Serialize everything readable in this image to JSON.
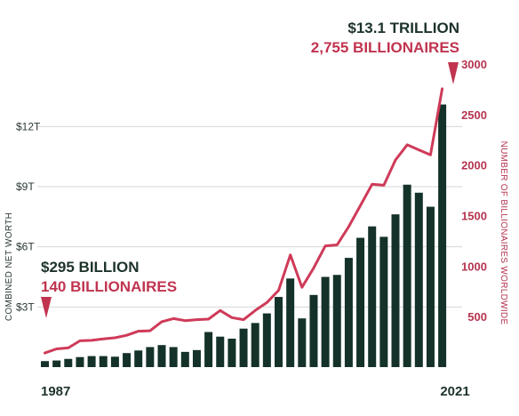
{
  "colors": {
    "bars": "#15322a",
    "line": "#cf3a58",
    "accent": "#c0344f",
    "grid": "#d6d6d6",
    "text": "#1d332a"
  },
  "annotations": {
    "end_worth": "$13.1 TRILLION",
    "end_count": "2,755 BILLIONAIRES",
    "start_worth": "$295 BILLION",
    "start_count": "140 BILLIONAIRES"
  },
  "chart_data": {
    "type": "bar",
    "xlabel": "",
    "x_tick_labels": [
      "1987",
      "2021"
    ],
    "ylabel": "COMBINED NET WORTH",
    "y2label": "NUMBER OF BILLIONAIRES WORLDWIDE",
    "ylim": [
      0,
      15.12
    ],
    "y_ticks": [
      3,
      6,
      9,
      12
    ],
    "y_tick_labels": [
      "$3T",
      "$6T",
      "$9T",
      "$12T"
    ],
    "y2lim": [
      0,
      3000
    ],
    "y2_ticks": [
      500,
      1000,
      1500,
      2000,
      2500,
      3000
    ],
    "y2_tick_labels": [
      "500",
      "1000",
      "1500",
      "2000",
      "2500",
      "3000"
    ],
    "grid": true,
    "categories": [
      "1987",
      "1988",
      "1989",
      "1990",
      "1991",
      "1992",
      "1993",
      "1994",
      "1995",
      "1996",
      "1997",
      "1998",
      "1999",
      "2000",
      "2001",
      "2002",
      "2003",
      "2004",
      "2005",
      "2006",
      "2007",
      "2008",
      "2009",
      "2010",
      "2011",
      "2012",
      "2013",
      "2014",
      "2015",
      "2016",
      "2017",
      "2018",
      "2019",
      "2020",
      "2021"
    ],
    "series": [
      {
        "kind": "bar",
        "axis": "left",
        "values": [
          0.3,
          0.33,
          0.41,
          0.5,
          0.55,
          0.55,
          0.52,
          0.7,
          0.83,
          1.0,
          1.1,
          1.0,
          0.76,
          0.85,
          1.75,
          1.52,
          1.42,
          1.92,
          2.2,
          2.68,
          3.5,
          4.42,
          2.43,
          3.6,
          4.5,
          4.6,
          5.45,
          6.45,
          7.02,
          6.5,
          7.62,
          9.1,
          8.7,
          8.0,
          13.1
        ]
      },
      {
        "kind": "line",
        "axis": "right",
        "values": [
          140,
          180,
          190,
          260,
          265,
          280,
          290,
          315,
          355,
          360,
          450,
          480,
          460,
          470,
          475,
          560,
          490,
          470,
          560,
          640,
          760,
          1110,
          790,
          980,
          1200,
          1210,
          1390,
          1600,
          1810,
          1800,
          2050,
          2200,
          2150,
          2100,
          2755
        ]
      }
    ]
  }
}
